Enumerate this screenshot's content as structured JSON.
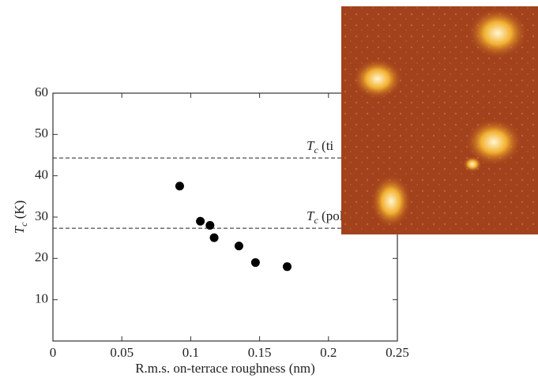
{
  "chart_data": {
    "type": "scatter",
    "x_label": "R.m.s. on-terrace roughness (nm)",
    "y_label": {
      "symbol": "T",
      "subscript": "c",
      "text": " (K)"
    },
    "x": [
      0.092,
      0.107,
      0.114,
      0.117,
      0.135,
      0.147,
      0.17
    ],
    "values": [
      37.5,
      29,
      28,
      25,
      23,
      19,
      18
    ],
    "color": "#000000",
    "xlim": [
      0,
      0.25
    ],
    "xticks": [
      0,
      0.05,
      0.1,
      0.15,
      0.2,
      0.25
    ],
    "ylim": [
      0,
      60
    ],
    "yticks": [
      10,
      20,
      30,
      40,
      50,
      60
    ],
    "reference_lines": [
      {
        "value": 44.3,
        "label": {
          "symbol": "T",
          "subscript": "c",
          "text": " (ti"
        }
      },
      {
        "value": 27.3,
        "label": {
          "symbol": "T",
          "subscript": "c",
          "text": " (pol"
        }
      }
    ]
  }
}
